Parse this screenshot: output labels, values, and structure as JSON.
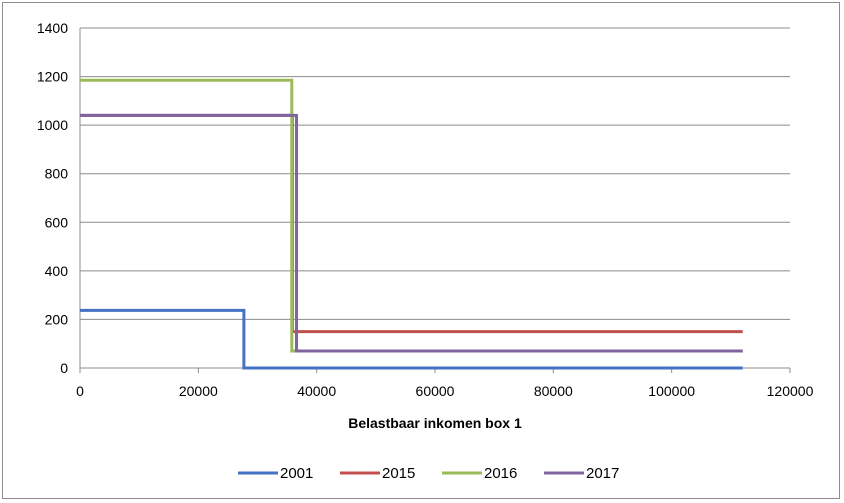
{
  "chart_data": {
    "type": "line",
    "title": "",
    "xlabel": "Belastbaar inkomen box 1",
    "ylabel": "",
    "xlim": [
      0,
      120000
    ],
    "ylim": [
      0,
      1400
    ],
    "xticks": [
      0,
      20000,
      40000,
      60000,
      80000,
      100000,
      120000
    ],
    "yticks": [
      0,
      200,
      400,
      600,
      800,
      1000,
      1200,
      1400
    ],
    "grid": "horizontal",
    "legend_position": "bottom",
    "series": [
      {
        "name": "2001",
        "color": "#4472c4",
        "points": [
          [
            0,
            237
          ],
          [
            27700,
            237
          ],
          [
            27700,
            0
          ],
          [
            112000,
            0
          ]
        ]
      },
      {
        "name": "2015",
        "color": "#c0504d",
        "points": [
          [
            0,
            1040
          ],
          [
            35900,
            1040
          ],
          [
            35900,
            150
          ],
          [
            112000,
            150
          ]
        ]
      },
      {
        "name": "2016",
        "color": "#9bbb59",
        "points": [
          [
            0,
            1185
          ],
          [
            35800,
            1185
          ],
          [
            35800,
            70
          ],
          [
            112000,
            70
          ]
        ]
      },
      {
        "name": "2017",
        "color": "#8064a2",
        "points": [
          [
            0,
            1040
          ],
          [
            36600,
            1040
          ],
          [
            36600,
            70
          ],
          [
            112000,
            70
          ]
        ]
      }
    ]
  }
}
